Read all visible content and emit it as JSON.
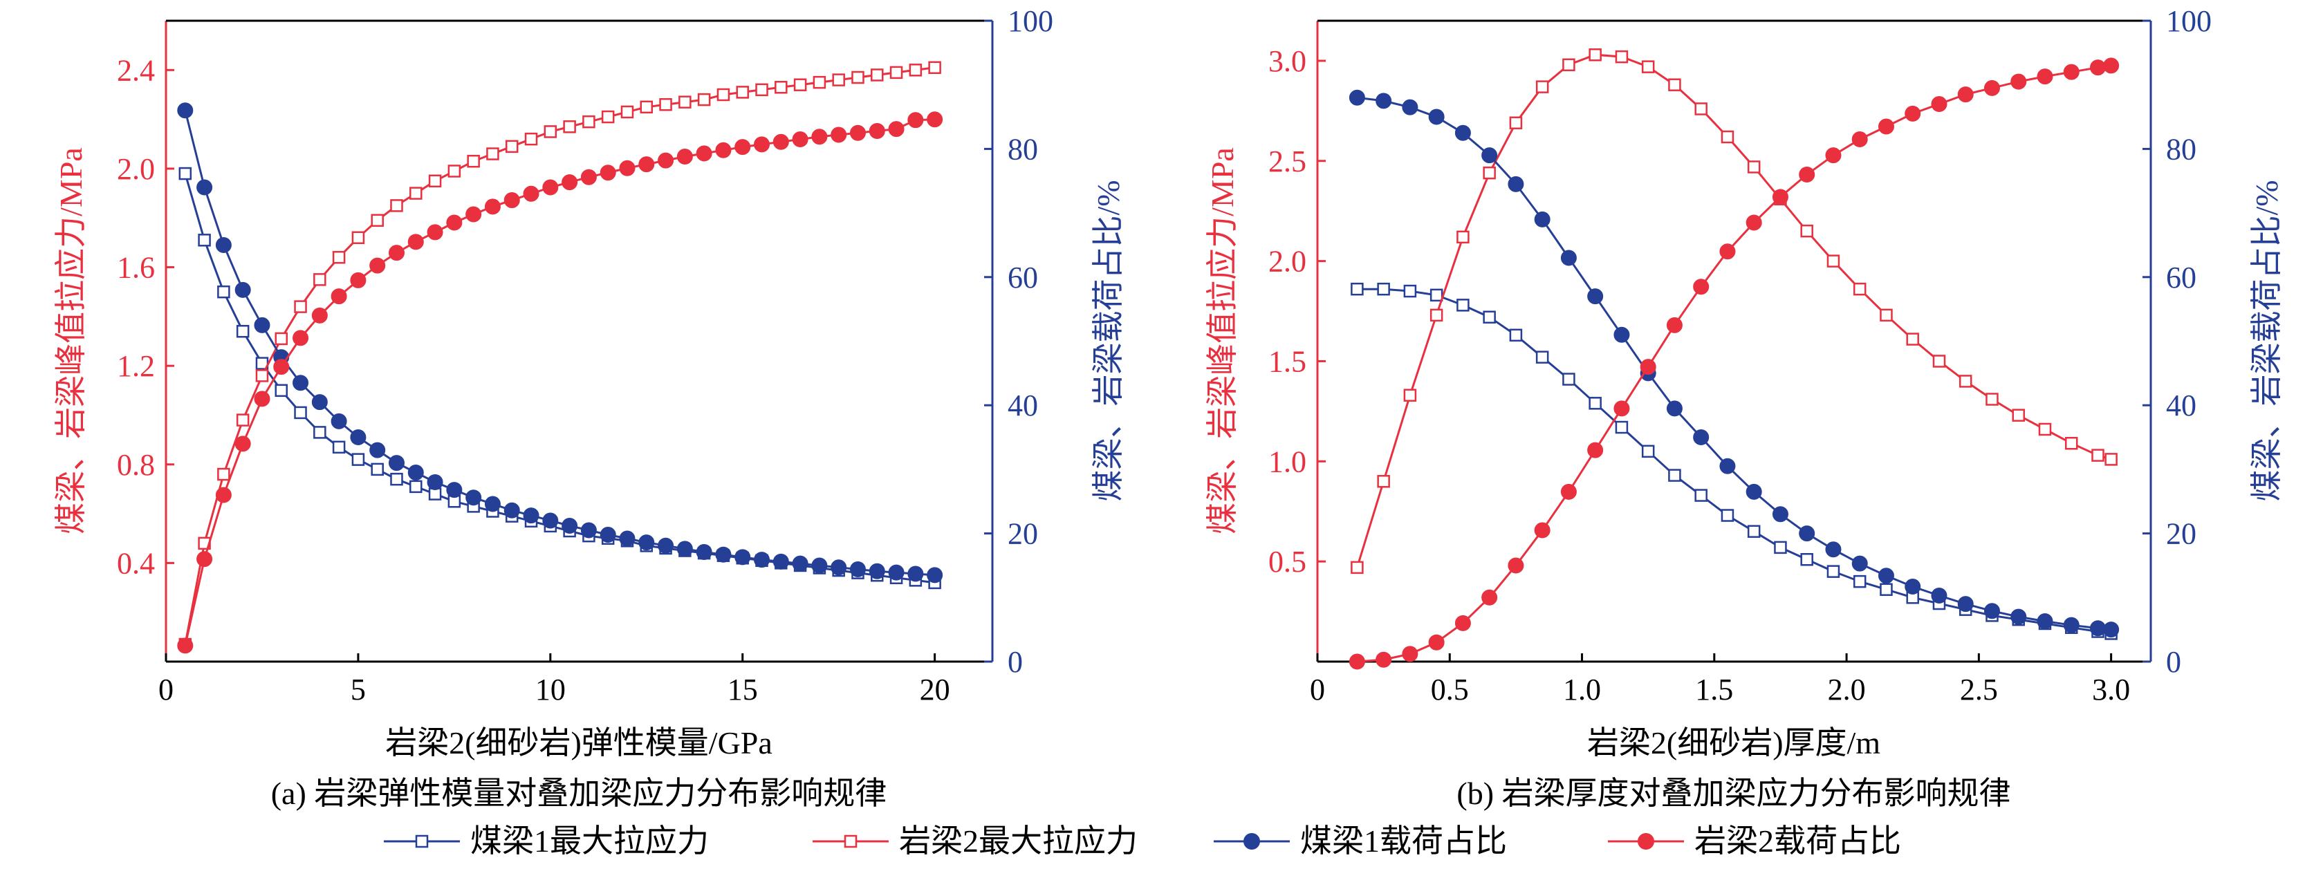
{
  "colors": {
    "red": "#E8303F",
    "blue": "#253F96",
    "black": "#000000"
  },
  "panels": [
    {
      "caption": "(a) 岩梁弹性模量对叠加梁应力分布影响规律",
      "xlabel": "岩梁2(细砂岩)弹性模量/GPa",
      "ylabel_left": "煤梁、岩梁峰值拉应力/MPa",
      "ylabel_right": "煤梁、岩梁载荷占比/%"
    },
    {
      "caption": "(b) 岩梁厚度对叠加梁应力分布影响规律",
      "xlabel": "岩梁2(细砂岩)厚度/m",
      "ylabel_left": "煤梁、岩梁峰值拉应力/MPa",
      "ylabel_right": "煤梁、岩梁载荷占比/%"
    }
  ],
  "legend": [
    {
      "label": "煤梁1最大拉应力",
      "color": "#253F96",
      "marker": "square-open"
    },
    {
      "label": "岩梁2最大拉应力",
      "color": "#E8303F",
      "marker": "square-open"
    },
    {
      "label": "煤梁1载荷占比",
      "color": "#253F96",
      "marker": "circle-filled"
    },
    {
      "label": "岩梁2载荷占比",
      "color": "#E8303F",
      "marker": "circle-filled"
    }
  ],
  "chart_data": [
    {
      "type": "line",
      "xlabel": "岩梁2(细砂岩)弹性模量/GPa",
      "ylabel": "煤梁、岩梁峰值拉应力/MPa",
      "y2label": "煤梁、岩梁载荷占比/%",
      "xlim": [
        0,
        21.5
      ],
      "ylim": [
        0,
        2.6
      ],
      "y2lim": [
        0,
        100
      ],
      "xticks": [
        0,
        5,
        10,
        15,
        20
      ],
      "yticks": [
        0.4,
        0.8,
        1.2,
        1.6,
        2.0,
        2.4
      ],
      "y2ticks": [
        0,
        20,
        40,
        60,
        80,
        100
      ],
      "grid": false,
      "x": [
        0.5,
        1,
        1.5,
        2,
        2.5,
        3,
        3.5,
        4,
        4.5,
        5,
        5.5,
        6,
        6.5,
        7,
        7.5,
        8,
        8.5,
        9,
        9.5,
        10,
        10.5,
        11,
        11.5,
        12,
        12.5,
        13,
        13.5,
        14,
        14.5,
        15,
        15.5,
        16,
        16.5,
        17,
        17.5,
        18,
        18.5,
        19,
        19.5,
        20
      ],
      "series": [
        {
          "name": "煤梁1最大拉应力",
          "axis": "left",
          "marker": "square-open",
          "color": "#253F96",
          "values": [
            1.98,
            1.71,
            1.5,
            1.34,
            1.21,
            1.1,
            1.01,
            0.93,
            0.87,
            0.82,
            0.78,
            0.74,
            0.71,
            0.68,
            0.65,
            0.63,
            0.61,
            0.59,
            0.57,
            0.55,
            0.53,
            0.51,
            0.5,
            0.49,
            0.47,
            0.46,
            0.45,
            0.44,
            0.43,
            0.42,
            0.41,
            0.4,
            0.39,
            0.38,
            0.37,
            0.36,
            0.35,
            0.34,
            0.33,
            0.32
          ]
        },
        {
          "name": "岩梁2最大拉应力",
          "axis": "left",
          "marker": "square-open",
          "color": "#E8303F",
          "values": [
            0.07,
            0.48,
            0.76,
            0.98,
            1.16,
            1.31,
            1.44,
            1.55,
            1.64,
            1.72,
            1.79,
            1.85,
            1.9,
            1.95,
            1.99,
            2.03,
            2.06,
            2.09,
            2.12,
            2.15,
            2.17,
            2.19,
            2.21,
            2.23,
            2.25,
            2.26,
            2.27,
            2.28,
            2.3,
            2.31,
            2.32,
            2.33,
            2.34,
            2.35,
            2.36,
            2.37,
            2.38,
            2.39,
            2.4,
            2.41
          ]
        },
        {
          "name": "煤梁1载荷占比",
          "axis": "right",
          "marker": "circle-filled",
          "color": "#253F96",
          "values": [
            86,
            74,
            65,
            58,
            52.5,
            47.5,
            43.5,
            40.5,
            37.5,
            35,
            33,
            31,
            29.5,
            28,
            26.8,
            25.6,
            24.6,
            23.6,
            22.8,
            22,
            21.2,
            20.5,
            19.8,
            19.2,
            18.6,
            18.1,
            17.6,
            17.1,
            16.7,
            16.3,
            15.9,
            15.6,
            15.3,
            15,
            14.7,
            14.4,
            14.1,
            13.9,
            13.7,
            13.5
          ]
        },
        {
          "name": "岩梁2载荷占比",
          "axis": "right",
          "marker": "circle-filled",
          "color": "#E8303F",
          "values": [
            2.5,
            16,
            26,
            34,
            41,
            46,
            50.5,
            54,
            57,
            59.5,
            61.8,
            63.8,
            65.5,
            67,
            68.5,
            69.8,
            71,
            72,
            73,
            74,
            74.8,
            75.6,
            76.3,
            77,
            77.6,
            78.2,
            78.8,
            79.3,
            79.8,
            80.3,
            80.7,
            81.1,
            81.5,
            81.9,
            82.2,
            82.5,
            82.8,
            83.1,
            84.5,
            84.6
          ]
        }
      ]
    },
    {
      "type": "line",
      "xlabel": "岩梁2(细砂岩)厚度/m",
      "ylabel": "煤梁、岩梁峰值拉应力/MPa",
      "y2label": "煤梁、岩梁载荷占比/%",
      "xlim": [
        0,
        3.15
      ],
      "ylim": [
        0,
        3.2
      ],
      "y2lim": [
        0,
        100
      ],
      "xticks": [
        0,
        0.5,
        1.0,
        1.5,
        2.0,
        2.5,
        3.0
      ],
      "yticks": [
        0.5,
        1.0,
        1.5,
        2.0,
        2.5,
        3.0
      ],
      "y2ticks": [
        0,
        20,
        40,
        60,
        80,
        100
      ],
      "grid": false,
      "x": [
        0.15,
        0.25,
        0.35,
        0.45,
        0.55,
        0.65,
        0.75,
        0.85,
        0.95,
        1.05,
        1.15,
        1.25,
        1.35,
        1.45,
        1.55,
        1.65,
        1.75,
        1.85,
        1.95,
        2.05,
        2.15,
        2.25,
        2.35,
        2.45,
        2.55,
        2.65,
        2.75,
        2.85,
        2.95,
        3.0
      ],
      "series": [
        {
          "name": "煤梁1最大拉应力",
          "axis": "left",
          "marker": "square-open",
          "color": "#253F96",
          "values": [
            1.86,
            1.86,
            1.85,
            1.83,
            1.78,
            1.72,
            1.63,
            1.52,
            1.41,
            1.29,
            1.17,
            1.05,
            0.93,
            0.83,
            0.73,
            0.65,
            0.57,
            0.51,
            0.45,
            0.4,
            0.36,
            0.32,
            0.29,
            0.26,
            0.23,
            0.21,
            0.19,
            0.17,
            0.15,
            0.14
          ]
        },
        {
          "name": "岩梁2最大拉应力",
          "axis": "left",
          "marker": "square-open",
          "color": "#E8303F",
          "values": [
            0.47,
            0.9,
            1.33,
            1.73,
            2.12,
            2.44,
            2.69,
            2.87,
            2.98,
            3.03,
            3.02,
            2.97,
            2.88,
            2.76,
            2.62,
            2.47,
            2.31,
            2.15,
            2.0,
            1.86,
            1.73,
            1.61,
            1.5,
            1.4,
            1.31,
            1.23,
            1.16,
            1.09,
            1.03,
            1.01
          ]
        },
        {
          "name": "煤梁1载荷占比",
          "axis": "right",
          "marker": "circle-filled",
          "color": "#253F96",
          "values": [
            88,
            87.5,
            86.5,
            85,
            82.5,
            79,
            74.5,
            69,
            63,
            57,
            51,
            45,
            39.5,
            35,
            30.5,
            26.5,
            23,
            20,
            17.5,
            15.3,
            13.4,
            11.7,
            10.3,
            9,
            7.9,
            7,
            6.3,
            5.7,
            5.2,
            5
          ]
        },
        {
          "name": "岩梁2载荷占比",
          "axis": "right",
          "marker": "circle-filled",
          "color": "#E8303F",
          "values": [
            0,
            0.3,
            1.2,
            3,
            6,
            10,
            15,
            20.5,
            26.5,
            33,
            39.5,
            46,
            52.5,
            58.5,
            64,
            68.5,
            72.5,
            76,
            79,
            81.5,
            83.5,
            85.5,
            87,
            88.5,
            89.5,
            90.5,
            91.3,
            92,
            92.7,
            93
          ]
        }
      ]
    }
  ]
}
